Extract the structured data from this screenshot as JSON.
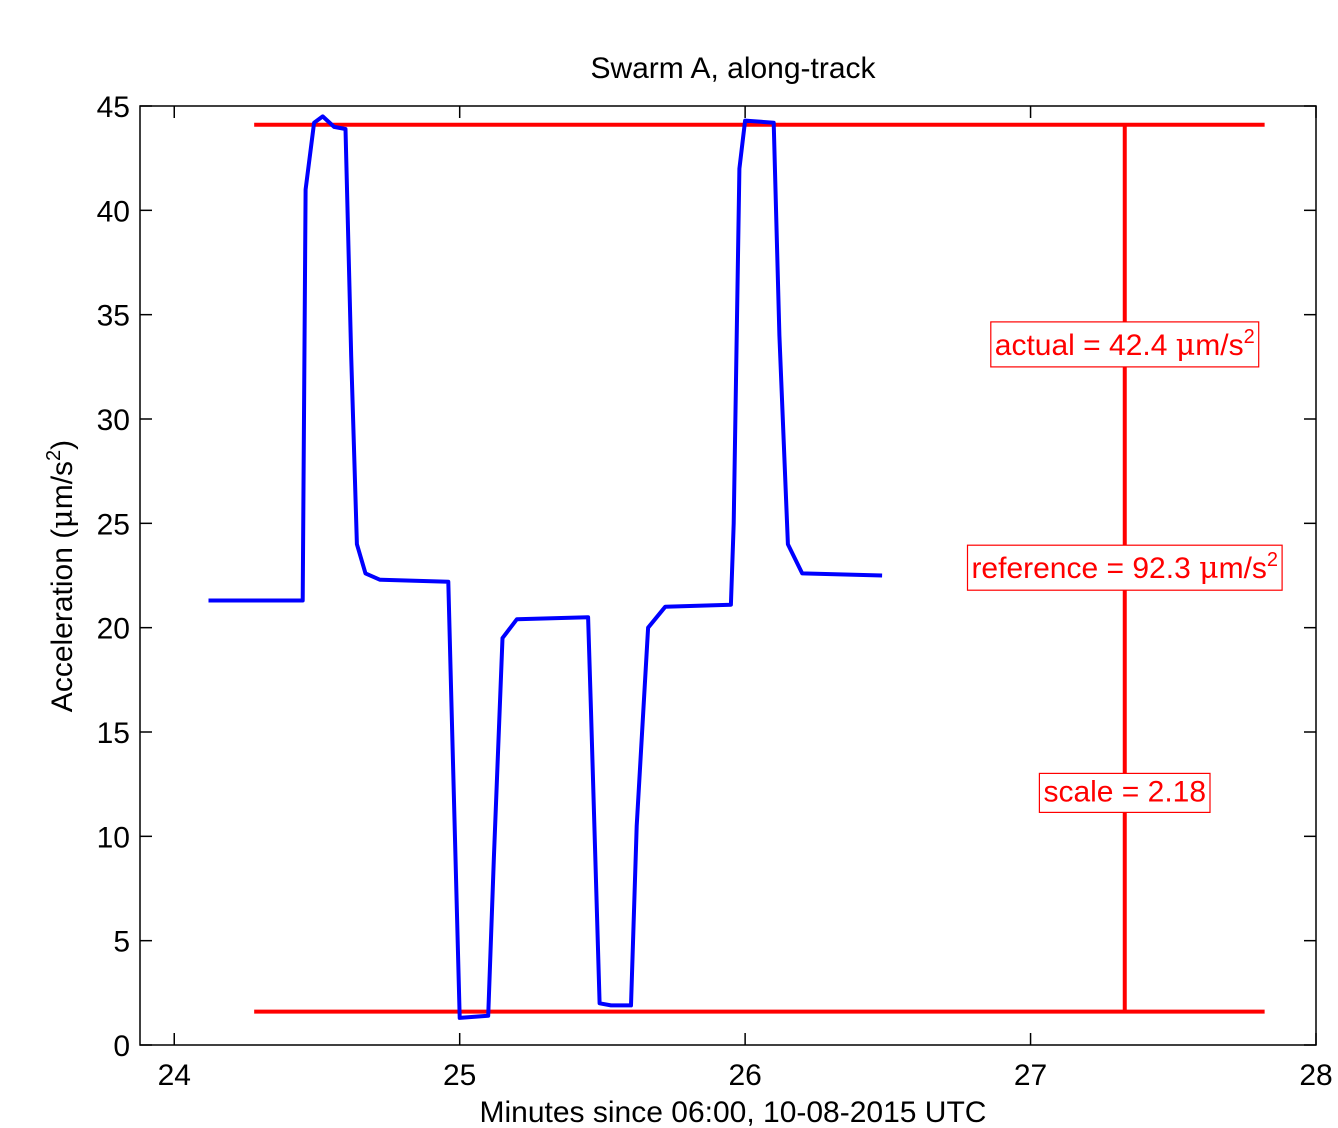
{
  "chart_data": {
    "type": "line",
    "title": "Swarm A, along-track",
    "xlabel": "Minutes since 06:00, 10-08-2015 UTC",
    "ylabel_main": "Acceleration (",
    "ylabel_unit_mu": "μ",
    "ylabel_unit_rest": "m/s",
    "ylabel_sup": "2",
    "ylabel_close": ")",
    "xlim": [
      23.88,
      28
    ],
    "ylim": [
      0,
      45
    ],
    "xticks": [
      24,
      25,
      26,
      27,
      28
    ],
    "yticks": [
      0,
      5,
      10,
      15,
      20,
      25,
      30,
      35,
      40,
      45
    ],
    "grid": false,
    "colors": {
      "series": "#0000ff",
      "annotation": "#ff0000",
      "axes": "#000000"
    },
    "series": [
      {
        "x": [
          24.12,
          24.45,
          24.46,
          24.49,
          24.52,
          24.56,
          24.6,
          24.62,
          24.64,
          24.67,
          24.72,
          24.96,
          24.97,
          25.0,
          25.1,
          25.12,
          25.15,
          25.2,
          25.45,
          25.46,
          25.49,
          25.53,
          25.6,
          25.62,
          25.66,
          25.72,
          25.95,
          25.96,
          25.98,
          26.0,
          26.1,
          26.12,
          26.15,
          26.2,
          26.48
        ],
        "y": [
          21.3,
          21.3,
          41.0,
          44.2,
          44.5,
          44.0,
          43.9,
          33.0,
          24.0,
          22.6,
          22.3,
          22.2,
          17.0,
          1.3,
          1.4,
          9.0,
          19.5,
          20.4,
          20.5,
          16.0,
          2.0,
          1.9,
          1.9,
          10.5,
          20.0,
          21.0,
          21.1,
          25.0,
          42.0,
          44.3,
          44.2,
          34.0,
          24.0,
          22.6,
          22.5
        ]
      }
    ],
    "reference_lines": {
      "upper_y": 44.1,
      "lower_y": 1.6,
      "x_start": 24.28,
      "x_end": 27.82,
      "vertical_x": 27.33
    },
    "annotations": [
      {
        "text": "actual = 42.4 ",
        "mu": "μ",
        "unit": "m/s",
        "sup": "2",
        "x": 27.33,
        "y": 33.6
      },
      {
        "text": "reference = 92.3 ",
        "mu": "μ",
        "unit": "m/s",
        "sup": "2",
        "x": 27.33,
        "y": 22.9
      },
      {
        "text": "scale = 2.18",
        "mu": "",
        "unit": "",
        "sup": "",
        "x": 27.33,
        "y": 12.2
      }
    ]
  }
}
